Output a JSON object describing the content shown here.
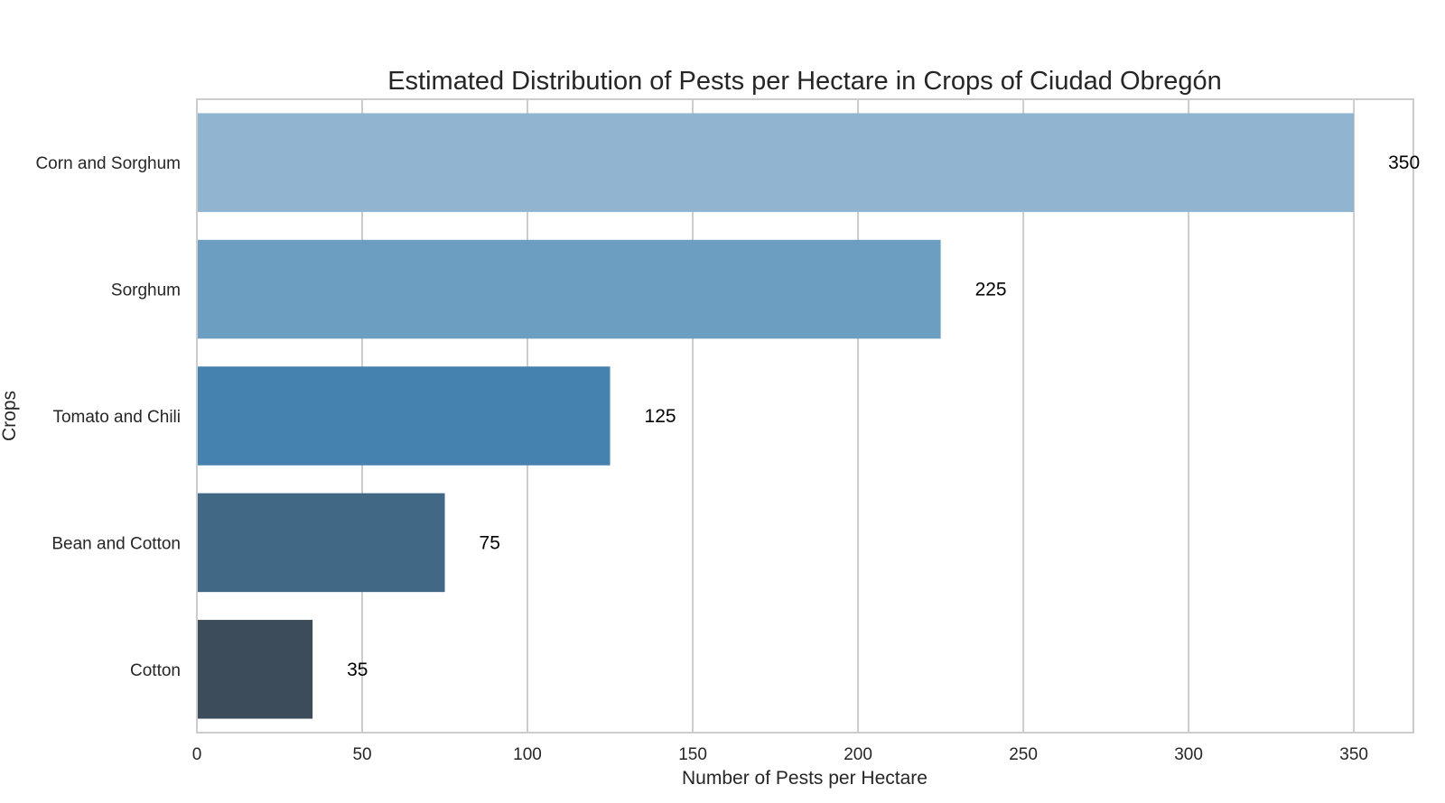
{
  "chart_data": {
    "type": "bar",
    "orientation": "horizontal",
    "title": "Estimated Distribution of Pests per Hectare in Crops of Ciudad Obregón",
    "xlabel": "Number of Pests per Hectare",
    "ylabel": "Crops",
    "categories": [
      "Corn and Sorghum",
      "Sorghum",
      "Tomato and Chili",
      "Bean and Cotton",
      "Cotton"
    ],
    "values": [
      350,
      225,
      125,
      75,
      35
    ],
    "data_labels": [
      "350",
      "225",
      "125",
      "75",
      "35"
    ],
    "colors": [
      "#91b5d0",
      "#6b9ec0",
      "#4682af",
      "#416884",
      "#3c4c5a"
    ],
    "xlim": [
      0,
      368
    ],
    "xticks": [
      0,
      50,
      100,
      150,
      200,
      250,
      300,
      350
    ],
    "grid": "vertical",
    "legend": "none"
  }
}
